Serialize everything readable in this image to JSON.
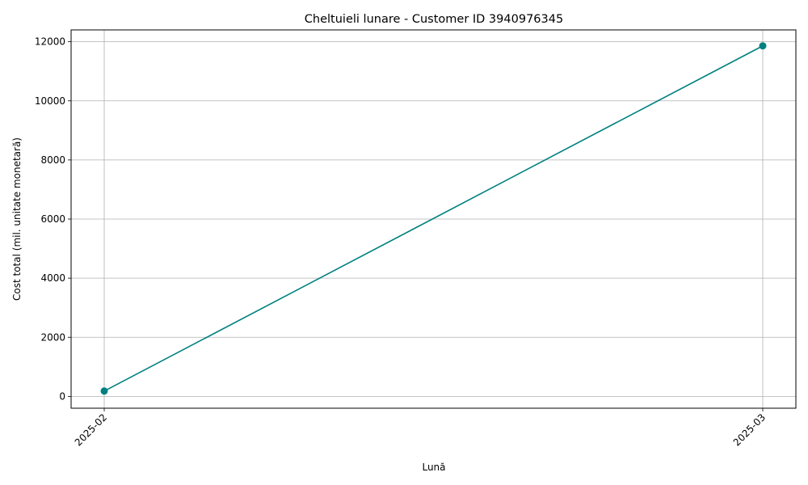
{
  "chart_data": {
    "type": "line",
    "title": "Cheltuieli lunare - Customer ID 3940976345",
    "xlabel": "Lună",
    "ylabel": "Cost total (mil. unitate monetară)",
    "categories": [
      "2025-02",
      "2025-03"
    ],
    "series": [
      {
        "values": [
          180,
          11860
        ],
        "color": "#008080",
        "marker": "circle"
      }
    ],
    "ylim": [
      -400,
      12400
    ],
    "yticks": [
      0,
      2000,
      4000,
      6000,
      8000,
      10000,
      12000
    ],
    "grid": true,
    "x_tick_rotation": 45
  }
}
